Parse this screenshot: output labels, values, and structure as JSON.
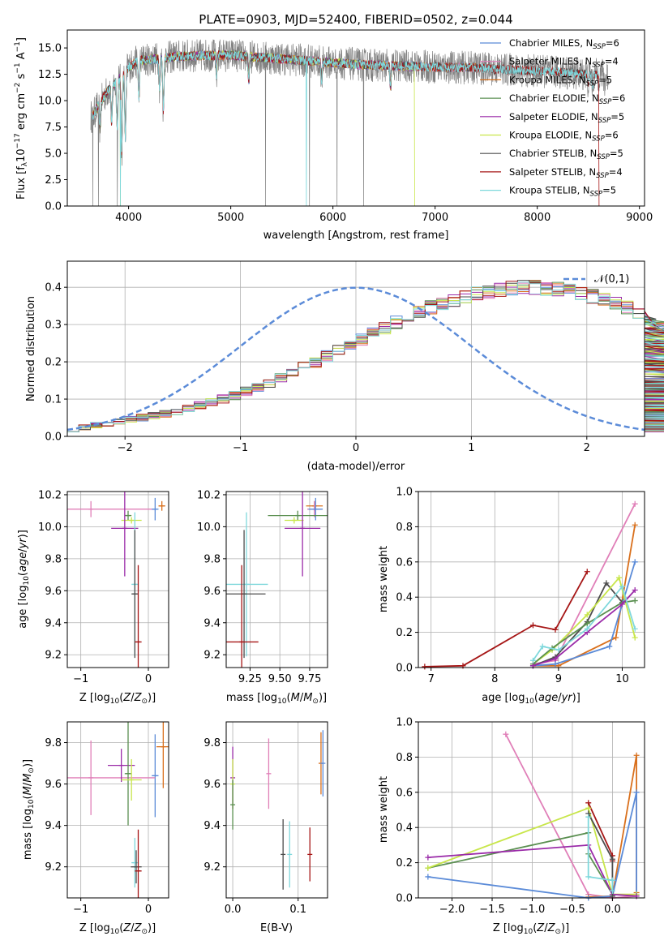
{
  "colors": {
    "Chabrier MILES": "#5b8bd8",
    "Salpeter MILES": "#e07fb8",
    "Kroupa MILES": "#d9701d",
    "Chabrier ELODIE": "#5a8f50",
    "Salpeter ELODIE": "#9a2aa8",
    "Kroupa ELODIE": "#c8e64a",
    "Chabrier STELIB": "#4d4d4d",
    "Salpeter STELIB": "#a61616",
    "Kroupa STELIB": "#7fd8dc",
    "data": "#808080",
    "normal": "#5b8bd8",
    "grid": "#b0b0b0"
  },
  "chart_data": [
    {
      "type": "line",
      "title": "PLATE=0903, MJD=52400, FIBERID=0502, z=0.044",
      "xlabel": "wavelength [Angstrom, rest frame]",
      "ylabel": "Flux [f_λ 10^-17 erg cm^-2 s^-1 A^-1]",
      "xlim": [
        3400,
        9050
      ],
      "ylim": [
        0,
        16.7
      ],
      "xticks": [
        4000,
        5000,
        6000,
        7000,
        8000,
        9000
      ],
      "yticks": [
        0.0,
        2.5,
        5.0,
        7.5,
        10.0,
        12.5,
        15.0
      ],
      "legend_position": "top-right",
      "series": [
        {
          "name": "Chabrier MILES",
          "nssp": 6
        },
        {
          "name": "Salpeter MILES",
          "nssp": 4
        },
        {
          "name": "Kroupa MILES",
          "nssp": 5
        },
        {
          "name": "Chabrier ELODIE",
          "nssp": 6
        },
        {
          "name": "Salpeter ELODIE",
          "nssp": 5
        },
        {
          "name": "Kroupa ELODIE",
          "nssp": 6
        },
        {
          "name": "Chabrier STELIB",
          "nssp": 5
        },
        {
          "name": "Salpeter STELIB",
          "nssp": 4
        },
        {
          "name": "Kroupa STELIB",
          "nssp": 5
        }
      ],
      "continuum": {
        "x": [
          3650,
          3700,
          3800,
          3900,
          4000,
          4100,
          4300,
          4500,
          4800,
          5000,
          5300,
          5600,
          6000,
          6300,
          6600,
          7000,
          7400,
          7800,
          8200,
          8500,
          8800
        ],
        "y": [
          8.5,
          9.5,
          11.0,
          12.0,
          13.2,
          13.8,
          14.0,
          14.2,
          14.3,
          14.3,
          14.1,
          13.9,
          13.6,
          13.4,
          13.3,
          13.2,
          13.1,
          12.9,
          12.7,
          12.5,
          12.3
        ]
      },
      "absorption_lines": [
        {
          "x": 3720,
          "depth": 2.5
        },
        {
          "x": 3834,
          "depth": 3.5
        },
        {
          "x": 3889,
          "depth": 4.5
        },
        {
          "x": 3933,
          "depth": 7.5
        },
        {
          "x": 3968,
          "depth": 6.5
        },
        {
          "x": 4101,
          "depth": 3.5
        },
        {
          "x": 4304,
          "depth": 2.8
        },
        {
          "x": 4340,
          "depth": 5.0
        },
        {
          "x": 4861,
          "depth": 2.0
        },
        {
          "x": 5175,
          "depth": 2.2
        },
        {
          "x": 5890,
          "depth": 1.8
        },
        {
          "x": 6563,
          "depth": 2.0
        },
        {
          "x": 8498,
          "depth": 0.8
        },
        {
          "x": 8542,
          "depth": 1.0
        },
        {
          "x": 8662,
          "depth": 0.8
        }
      ],
      "data_dropouts": [
        3650,
        3705,
        3890,
        5340,
        5770,
        6040,
        6300
      ],
      "model_dropouts": [
        {
          "x": 3920,
          "series": "Kroupa ELODIE"
        },
        {
          "x": 3920,
          "series": "Kroupa STELIB"
        },
        {
          "x": 5740,
          "series": "Kroupa STELIB"
        },
        {
          "x": 6800,
          "series": "Kroupa ELODIE"
        }
      ],
      "model_end_drop": {
        "x": 7420,
        "series": "Salpeter STELIB"
      },
      "model_xmax": {
        "MILES": 7400,
        "ELODIE": 6800,
        "STELIB": 8600
      }
    },
    {
      "type": "histogram",
      "xlabel": "(data-model)/error",
      "ylabel": "Normed distribution",
      "xlim": [
        -2.5,
        2.5
      ],
      "ylim": [
        0,
        0.47
      ],
      "xticks": [
        -2,
        -1,
        0,
        1,
        2
      ],
      "yticks": [
        0.0,
        0.1,
        0.2,
        0.3,
        0.4
      ],
      "legend": "𝒩(0,1)",
      "legend_position": "top-right",
      "bin_width": 0.1,
      "x_start": -2.5,
      "base_values": [
        0.02,
        0.025,
        0.03,
        0.035,
        0.04,
        0.045,
        0.05,
        0.055,
        0.06,
        0.068,
        0.075,
        0.083,
        0.09,
        0.1,
        0.11,
        0.12,
        0.13,
        0.14,
        0.155,
        0.17,
        0.185,
        0.2,
        0.215,
        0.23,
        0.245,
        0.26,
        0.275,
        0.29,
        0.305,
        0.32,
        0.333,
        0.345,
        0.355,
        0.365,
        0.375,
        0.383,
        0.39,
        0.395,
        0.398,
        0.4,
        0.4,
        0.398,
        0.395,
        0.39,
        0.383,
        0.375,
        0.365,
        0.355,
        0.345,
        0.333,
        0.32,
        0.305,
        0.29,
        0.275,
        0.26,
        0.245,
        0.23,
        0.215,
        0.2,
        0.185,
        0.17,
        0.155,
        0.14,
        0.13,
        0.12,
        0.11,
        0.1,
        0.09,
        0.083,
        0.075,
        0.068,
        0.06,
        0.055,
        0.05,
        0.045,
        0.04,
        0.035,
        0.03,
        0.027,
        0.024,
        0.022,
        0.02
      ],
      "series_names": [
        "Chabrier MILES",
        "Salpeter MILES",
        "Kroupa MILES",
        "Chabrier ELODIE",
        "Salpeter ELODIE",
        "Kroupa ELODIE",
        "Chabrier STELIB",
        "Salpeter STELIB",
        "Kroupa STELIB"
      ]
    },
    {
      "type": "scatter",
      "xlabel": "Z [log10(Z/Z⊙)]",
      "ylabel": "age [log10(age/yr)]",
      "xlim": [
        -1.2,
        0.3
      ],
      "ylim": [
        9.12,
        10.22
      ],
      "xticks": [
        -1,
        0
      ],
      "yticks": [
        9.2,
        9.4,
        9.6,
        9.8,
        10.0,
        10.2
      ],
      "points": [
        {
          "series": "Salpeter MILES",
          "x": -0.85,
          "xerr": 0.95,
          "y": 10.11,
          "yerr": 0.05
        },
        {
          "series": "Kroupa MILES",
          "x": 0.2,
          "xerr": 0.05,
          "y": 10.13,
          "yerr": 0.03
        },
        {
          "series": "Chabrier MILES",
          "x": 0.1,
          "xerr": 0.05,
          "y": 10.11,
          "yerr": 0.07
        },
        {
          "series": "Chabrier ELODIE",
          "x": -0.3,
          "xerr": 0.05,
          "y": 10.07,
          "yerr": 0.03
        },
        {
          "series": "Kroupa ELODIE",
          "x": -0.25,
          "xerr": 0.15,
          "y": 10.04,
          "yerr": 0.02
        },
        {
          "series": "Salpeter ELODIE",
          "x": -0.35,
          "xerr": 0.2,
          "y": 9.99,
          "yerr": 0.3
        },
        {
          "series": "Kroupa STELIB",
          "x": -0.2,
          "xerr": 0.05,
          "y": 9.64,
          "yerr": 0.45
        },
        {
          "series": "Chabrier STELIB",
          "x": -0.2,
          "xerr": 0.05,
          "y": 9.58,
          "yerr": 0.4
        },
        {
          "series": "Salpeter STELIB",
          "x": -0.15,
          "xerr": 0.05,
          "y": 9.28,
          "yerr": 0.48
        }
      ]
    },
    {
      "type": "scatter",
      "xlabel": "mass [log10(M/M⊙)]",
      "xlim": [
        9.05,
        9.9
      ],
      "ylim": [
        9.12,
        10.22
      ],
      "xticks": [
        9.25,
        9.5,
        9.75
      ],
      "yticks": [
        9.2,
        9.4,
        9.6,
        9.8,
        10.0,
        10.2
      ],
      "points": [
        {
          "series": "Kroupa MILES",
          "x": 9.79,
          "xerr": 0.07,
          "y": 10.13,
          "yerr": 0.03
        },
        {
          "series": "Salpeter MILES",
          "x": 9.79,
          "xerr": 0.06,
          "y": 10.11,
          "yerr": 0.05
        },
        {
          "series": "Chabrier MILES",
          "x": 9.8,
          "xerr": 0.06,
          "y": 10.11,
          "yerr": 0.07
        },
        {
          "series": "Chabrier ELODIE",
          "x": 9.65,
          "xerr": 0.25,
          "y": 10.07,
          "yerr": 0.03
        },
        {
          "series": "Kroupa ELODIE",
          "x": 9.62,
          "xerr": 0.08,
          "y": 10.04,
          "yerr": 0.02
        },
        {
          "series": "Salpeter ELODIE",
          "x": 9.69,
          "xerr": 0.15,
          "y": 9.99,
          "yerr": 0.3
        },
        {
          "series": "Kroupa STELIB",
          "x": 9.22,
          "xerr": 0.18,
          "y": 9.64,
          "yerr": 0.45
        },
        {
          "series": "Chabrier STELIB",
          "x": 9.2,
          "xerr": 0.18,
          "y": 9.58,
          "yerr": 0.4
        },
        {
          "series": "Salpeter STELIB",
          "x": 9.18,
          "xerr": 0.14,
          "y": 9.28,
          "yerr": 0.48
        }
      ]
    },
    {
      "type": "line",
      "xlabel": "age [log10(age/yr)]",
      "ylabel": "mass weight",
      "xlim": [
        6.8,
        10.35
      ],
      "ylim": [
        0,
        1.0
      ],
      "xticks": [
        7,
        8,
        9,
        10
      ],
      "yticks": [
        0.0,
        0.2,
        0.4,
        0.6,
        0.8,
        1.0
      ],
      "series": [
        {
          "name": "Salpeter STELIB",
          "x": [
            6.9,
            7.5,
            8.6,
            8.95,
            9.45
          ],
          "y": [
            0.005,
            0.01,
            0.24,
            0.215,
            0.545
          ]
        },
        {
          "name": "Salpeter MILES",
          "x": [
            8.6,
            8.95,
            10.2
          ],
          "y": [
            0.02,
            0.04,
            0.93
          ]
        },
        {
          "name": "Kroupa MILES",
          "x": [
            8.6,
            9.0,
            9.9,
            10.2
          ],
          "y": [
            0.01,
            0.01,
            0.17,
            0.81
          ]
        },
        {
          "name": "Chabrier MILES",
          "x": [
            8.6,
            8.95,
            9.8,
            10.2
          ],
          "y": [
            0.01,
            0.02,
            0.12,
            0.6
          ]
        },
        {
          "name": "Chabrier STELIB",
          "x": [
            8.6,
            8.95,
            9.45,
            9.75,
            10.0
          ],
          "y": [
            0.01,
            0.06,
            0.26,
            0.48,
            0.37
          ]
        },
        {
          "name": "Kroupa ELODIE",
          "x": [
            8.6,
            8.9,
            9.45,
            9.95,
            10.2
          ],
          "y": [
            0.02,
            0.1,
            0.3,
            0.51,
            0.17
          ]
        },
        {
          "name": "Chabrier ELODIE",
          "x": [
            8.6,
            8.9,
            9.45,
            10.0,
            10.2
          ],
          "y": [
            0.02,
            0.11,
            0.25,
            0.37,
            0.38
          ]
        },
        {
          "name": "Salpeter ELODIE",
          "x": [
            8.6,
            8.95,
            9.45,
            10.0,
            10.2
          ],
          "y": [
            0.01,
            0.05,
            0.2,
            0.36,
            0.44
          ]
        },
        {
          "name": "Kroupa STELIB",
          "x": [
            8.6,
            8.75,
            9.0,
            9.45,
            10.0,
            10.2
          ],
          "y": [
            0.04,
            0.12,
            0.1,
            0.22,
            0.46,
            0.22
          ]
        }
      ]
    },
    {
      "type": "scatter",
      "xlabel": "Z [log10(Z/Z⊙)]",
      "ylabel": "mass [log10(M/M⊙)]",
      "xlim": [
        -1.2,
        0.3
      ],
      "ylim": [
        9.05,
        9.9
      ],
      "xticks": [
        -1,
        0
      ],
      "yticks": [
        9.2,
        9.4,
        9.6,
        9.8
      ],
      "points": [
        {
          "series": "Chabrier MILES",
          "x": 0.1,
          "xerr": 0.05,
          "y": 9.64,
          "yerr": 0.2
        },
        {
          "series": "Kroupa MILES",
          "x": 0.22,
          "xerr": 0.1,
          "y": 9.78,
          "yerr": 0.2
        },
        {
          "series": "Salpeter MILES",
          "x": -0.85,
          "xerr": 0.95,
          "y": 9.63,
          "yerr": 0.18
        },
        {
          "series": "Salpeter ELODIE",
          "x": -0.4,
          "xerr": 0.2,
          "y": 9.69,
          "yerr": 0.08
        },
        {
          "series": "Chabrier ELODIE",
          "x": -0.3,
          "xerr": 0.05,
          "y": 9.65,
          "yerr": 0.25
        },
        {
          "series": "Kroupa ELODIE",
          "x": -0.25,
          "xerr": 0.15,
          "y": 9.62,
          "yerr": 0.1
        },
        {
          "series": "Kroupa STELIB",
          "x": -0.2,
          "xerr": 0.05,
          "y": 9.22,
          "yerr": 0.12
        },
        {
          "series": "Chabrier STELIB",
          "x": -0.18,
          "xerr": 0.08,
          "y": 9.2,
          "yerr": 0.08
        },
        {
          "series": "Salpeter STELIB",
          "x": -0.15,
          "xerr": 0.05,
          "y": 9.18,
          "yerr": 0.2
        }
      ]
    },
    {
      "type": "scatter",
      "xlabel": "E(B-V)",
      "xlim": [
        -0.01,
        0.145
      ],
      "ylim": [
        9.05,
        9.9
      ],
      "xticks": [
        0.0,
        0.1
      ],
      "yticks": [
        9.2,
        9.4,
        9.6,
        9.8
      ],
      "points": [
        {
          "series": "Salpeter ELODIE",
          "x": 0.0,
          "y": 9.63,
          "yerr": 0.15
        },
        {
          "series": "Kroupa ELODIE",
          "x": 0.0,
          "y": 9.6,
          "yerr": 0.12
        },
        {
          "series": "Chabrier ELODIE",
          "x": 0.0,
          "y": 9.5,
          "yerr": 0.12
        },
        {
          "series": "Salpeter MILES",
          "x": 0.055,
          "y": 9.65,
          "yerr": 0.17
        },
        {
          "series": "Chabrier STELIB",
          "x": 0.077,
          "y": 9.26,
          "yerr": 0.17
        },
        {
          "series": "Kroupa STELIB",
          "x": 0.087,
          "y": 9.26,
          "yerr": 0.16
        },
        {
          "series": "Salpeter STELIB",
          "x": 0.118,
          "y": 9.26,
          "yerr": 0.13
        },
        {
          "series": "Kroupa MILES",
          "x": 0.135,
          "y": 9.7,
          "yerr": 0.15
        },
        {
          "series": "Chabrier MILES",
          "x": 0.138,
          "y": 9.7,
          "yerr": 0.16
        }
      ]
    },
    {
      "type": "line",
      "xlabel": "Z [log10(Z/Z⊙)]",
      "ylabel": "mass weight",
      "xlim": [
        -2.42,
        0.4
      ],
      "ylim": [
        0,
        1.0
      ],
      "xticks": [
        -2.0,
        -1.5,
        -1.0,
        -0.5,
        0.0
      ],
      "yticks": [
        0.0,
        0.2,
        0.4,
        0.6,
        0.8,
        1.0
      ],
      "series": [
        {
          "name": "Salpeter MILES",
          "x": [
            -1.33,
            -0.3,
            0.0,
            0.3
          ],
          "y": [
            0.93,
            0.02,
            0.0,
            0.01
          ]
        },
        {
          "name": "Kroupa MILES",
          "x": [
            -0.3,
            0.0,
            0.3,
            0.3
          ],
          "y": [
            0.005,
            0.01,
            0.81,
            0.03
          ]
        },
        {
          "name": "Chabrier MILES",
          "x": [
            -2.3,
            -0.3,
            0.0,
            0.3,
            0.3
          ],
          "y": [
            0.12,
            0.0,
            0.01,
            0.6,
            0.02
          ]
        },
        {
          "name": "Salpeter STELIB",
          "x": [
            -0.3,
            0.0,
            0.0
          ],
          "y": [
            0.54,
            0.24,
            0.21
          ]
        },
        {
          "name": "Chabrier ELODIE",
          "x": [
            -2.3,
            -0.3,
            -0.3,
            0.0
          ],
          "y": [
            0.17,
            0.37,
            0.25,
            0.02
          ]
        },
        {
          "name": "Kroupa ELODIE",
          "x": [
            -2.3,
            -0.3,
            0.0,
            0.3
          ],
          "y": [
            0.17,
            0.51,
            0.02,
            0.02
          ]
        },
        {
          "name": "Salpeter ELODIE",
          "x": [
            -2.3,
            -0.3,
            0.0,
            0.3
          ],
          "y": [
            0.23,
            0.3,
            0.02,
            0.01
          ]
        },
        {
          "name": "Chabrier STELIB",
          "x": [
            -0.3,
            0.0,
            0.0
          ],
          "y": [
            0.48,
            0.22,
            0.01
          ]
        },
        {
          "name": "Kroupa STELIB",
          "x": [
            -0.3,
            -0.3,
            0.0,
            0.0
          ],
          "y": [
            0.46,
            0.12,
            0.1,
            0.04
          ]
        }
      ]
    }
  ]
}
